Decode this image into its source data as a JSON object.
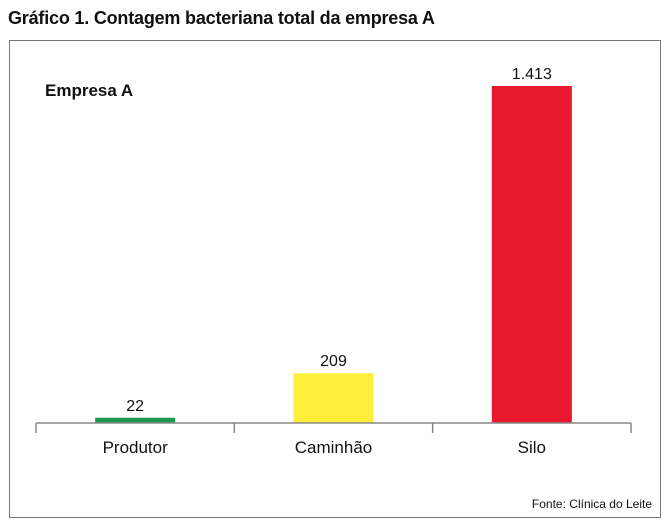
{
  "figure": {
    "title": "Gráfico 1. Contagem bacteriana total da empresa A",
    "source": "Fonte: Clínica do Leite"
  },
  "chart_data": {
    "type": "bar",
    "series_label": "Empresa A",
    "categories": [
      "Produtor",
      "Caminhão",
      "Silo"
    ],
    "values": [
      22,
      209,
      1413
    ],
    "value_labels": [
      "22",
      "209",
      "1.413"
    ],
    "colors": [
      "#1a9a4a",
      "#fef03a",
      "#e8192f"
    ],
    "ylim": [
      0,
      1413
    ],
    "grid": false,
    "legend": "top-left"
  }
}
